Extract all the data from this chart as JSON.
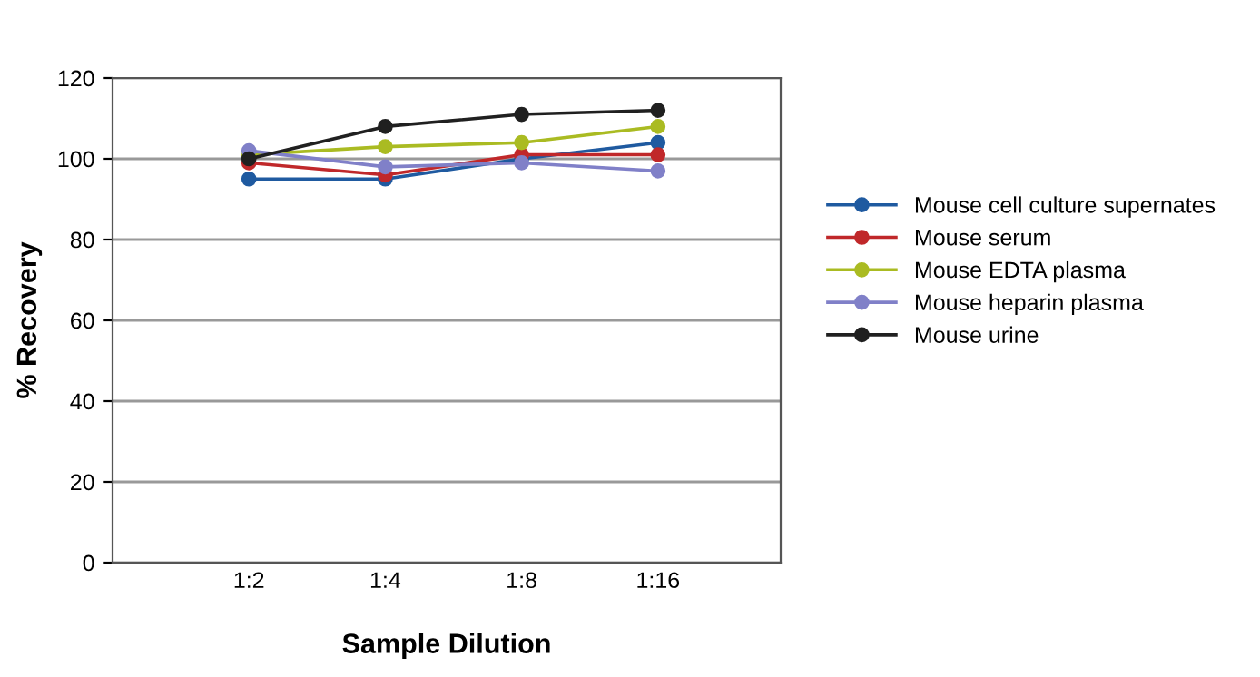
{
  "chart_data": {
    "type": "line",
    "xlabel": "Sample Dilution",
    "ylabel": "% Recovery",
    "categories": [
      "1:2",
      "1:4",
      "1:8",
      "1:16"
    ],
    "series": [
      {
        "name": "Mouse cell culture supernates",
        "color": "#1f5aa0",
        "values": [
          95,
          95,
          100,
          104
        ]
      },
      {
        "name": "Mouse serum",
        "color": "#c0282a",
        "values": [
          99,
          96,
          101,
          101
        ]
      },
      {
        "name": "Mouse EDTA plasma",
        "color": "#aabb22",
        "values": [
          101,
          103,
          104,
          108
        ]
      },
      {
        "name": "Mouse heparin plasma",
        "color": "#8080c8",
        "values": [
          102,
          98,
          99,
          97
        ]
      },
      {
        "name": "Mouse urine",
        "color": "#202020",
        "values": [
          100,
          108,
          111,
          112
        ]
      }
    ],
    "ylim": [
      0,
      120
    ],
    "yticks": [
      0,
      20,
      40,
      60,
      80,
      100,
      120
    ],
    "grid": "y",
    "legend": "right",
    "marker": "circle"
  }
}
